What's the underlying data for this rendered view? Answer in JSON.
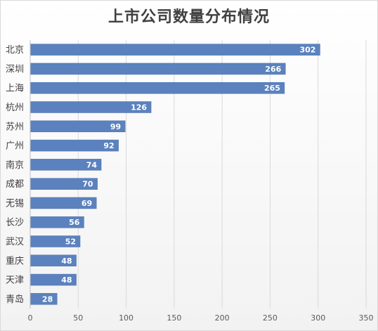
{
  "chart_data": {
    "type": "bar",
    "orientation": "horizontal",
    "title": "上市公司数量分布情况",
    "categories": [
      "北京",
      "深圳",
      "上海",
      "杭州",
      "苏州",
      "广州",
      "南京",
      "成都",
      "无锡",
      "长沙",
      "武汉",
      "重庆",
      "天津",
      "青岛"
    ],
    "values": [
      302,
      266,
      265,
      126,
      99,
      92,
      74,
      70,
      69,
      56,
      52,
      48,
      48,
      28
    ],
    "xlim": [
      0,
      350
    ],
    "xticks": [
      0,
      50,
      100,
      150,
      200,
      250,
      300,
      350
    ],
    "grid": true,
    "legend": "none",
    "bar_color": "#5b82be",
    "data_labels": "inside-end"
  }
}
